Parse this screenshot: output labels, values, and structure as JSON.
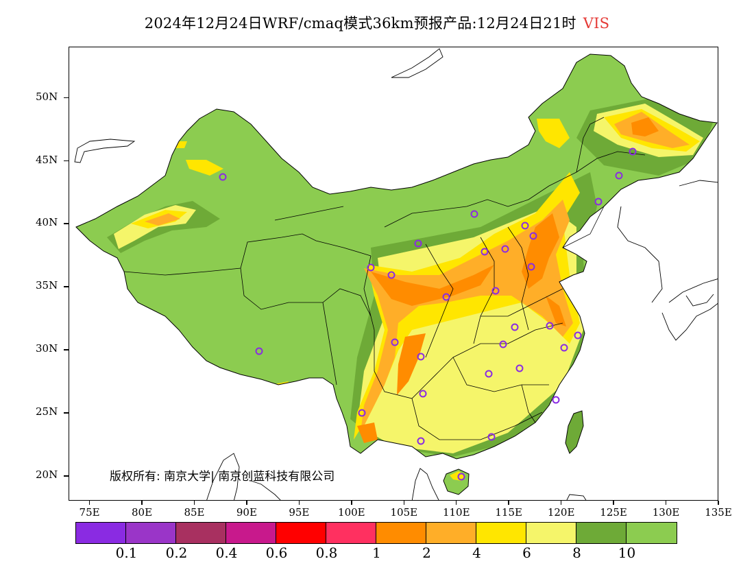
{
  "title": {
    "main": "2024年12月24日WRF/cmaq模式36km预报产品:12月24日21时",
    "variable": "VIS",
    "variable_color": "#e53935"
  },
  "map": {
    "lon_range": [
      73,
      135
    ],
    "lat_range": [
      18,
      54
    ],
    "lat_ticks": [
      {
        "value": 50,
        "label": "50N"
      },
      {
        "value": 45,
        "label": "45N"
      },
      {
        "value": 40,
        "label": "40N"
      },
      {
        "value": 35,
        "label": "35N"
      },
      {
        "value": 30,
        "label": "30N"
      },
      {
        "value": 25,
        "label": "25N"
      },
      {
        "value": 20,
        "label": "20N"
      }
    ],
    "lon_ticks": [
      {
        "value": 75,
        "label": "75E"
      },
      {
        "value": 80,
        "label": "80E"
      },
      {
        "value": 85,
        "label": "85E"
      },
      {
        "value": 90,
        "label": "90E"
      },
      {
        "value": 95,
        "label": "95E"
      },
      {
        "value": 100,
        "label": "100E"
      },
      {
        "value": 105,
        "label": "105E"
      },
      {
        "value": 110,
        "label": "110E"
      },
      {
        "value": 115,
        "label": "115E"
      },
      {
        "value": 120,
        "label": "120E"
      },
      {
        "value": 125,
        "label": "125E"
      },
      {
        "value": 130,
        "label": "130E"
      },
      {
        "value": 135,
        "label": "135E"
      }
    ]
  },
  "copyright": "版权所有: 南京大学| 南京创蓝科技有限公司",
  "legend": {
    "colors": [
      "#8a2be2",
      "#9a35c8",
      "#a83060",
      "#c8198c",
      "#ff0000",
      "#ff3060",
      "#ff8c00",
      "#ffae28",
      "#ffe600",
      "#f5f56a",
      "#6eaa37",
      "#8ccc50"
    ],
    "labels": [
      "0.1",
      "0.2",
      "0.4",
      "0.6",
      "0.8",
      "1",
      "2",
      "4",
      "6",
      "8",
      "10"
    ]
  }
}
